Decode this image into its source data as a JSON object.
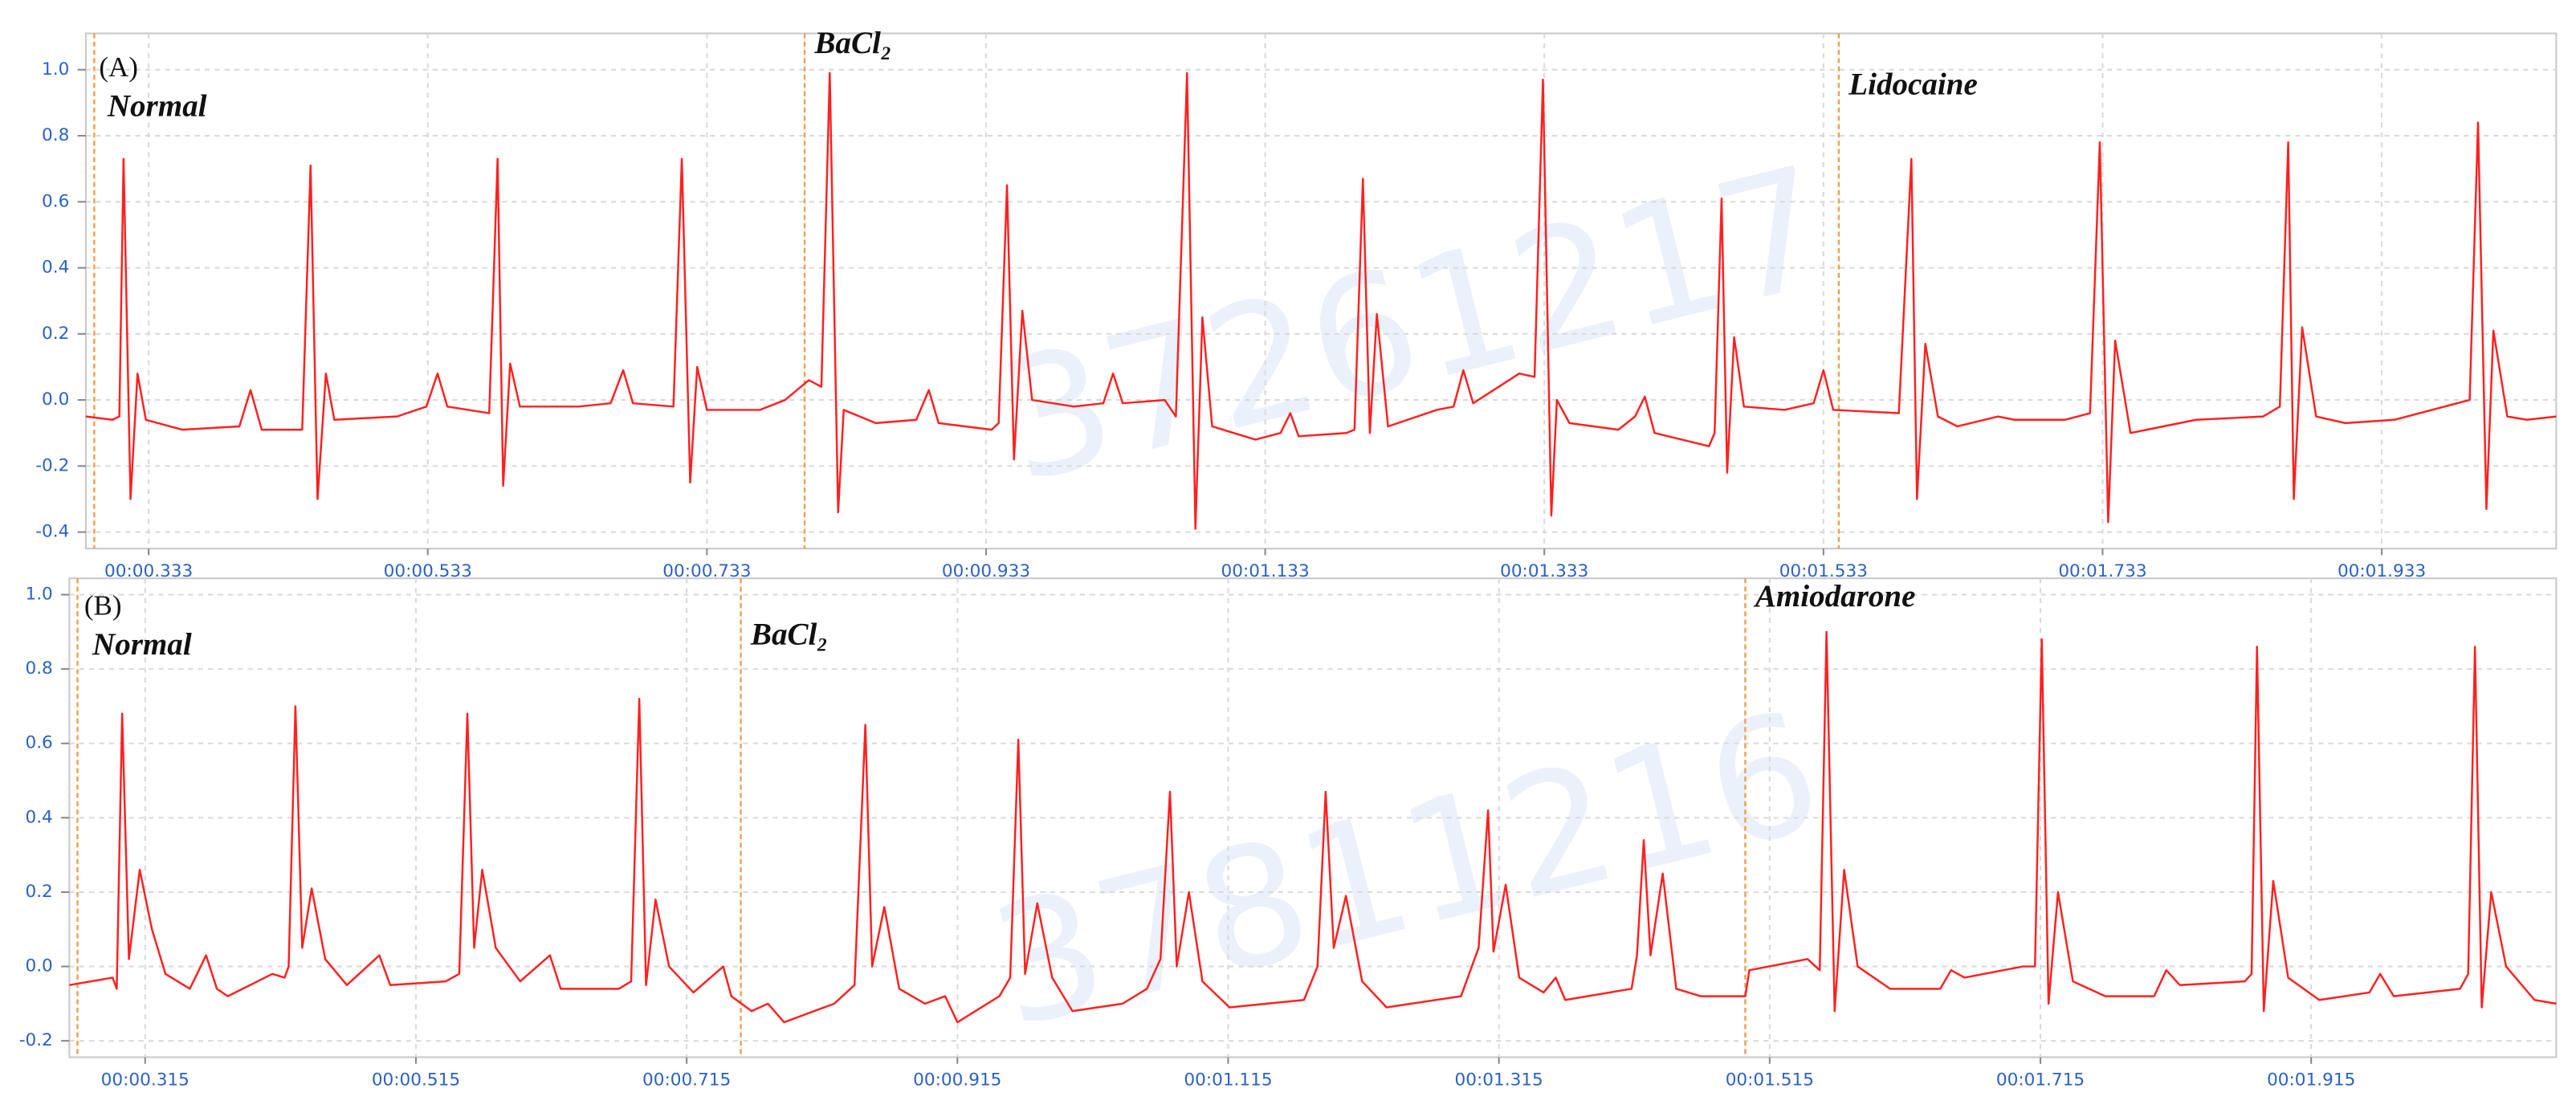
{
  "chart_data": [
    {
      "type": "line",
      "label": "(A)",
      "watermark": "37261217",
      "x": [
        0.288,
        0.307,
        0.312,
        0.315,
        0.32,
        0.325,
        0.331,
        0.357,
        0.398,
        0.406,
        0.414,
        0.443,
        0.449,
        0.454,
        0.46,
        0.466,
        0.511,
        0.532,
        0.54,
        0.547,
        0.577,
        0.583,
        0.587,
        0.592,
        0.599,
        0.641,
        0.664,
        0.673,
        0.68,
        0.709,
        0.715,
        0.721,
        0.726,
        0.733,
        0.771,
        0.789,
        0.806,
        0.815,
        0.821,
        0.827,
        0.831,
        0.854,
        0.883,
        0.892,
        0.899,
        0.937,
        0.942,
        0.948,
        0.953,
        0.959,
        0.966,
        0.996,
        1.017,
        1.024,
        1.031,
        1.061,
        1.069,
        1.077,
        1.083,
        1.088,
        1.095,
        1.126,
        1.144,
        1.151,
        1.157,
        1.191,
        1.197,
        1.203,
        1.208,
        1.213,
        1.221,
        1.256,
        1.268,
        1.275,
        1.282,
        1.315,
        1.326,
        1.332,
        1.338,
        1.342,
        1.351,
        1.386,
        1.398,
        1.405,
        1.412,
        1.451,
        1.455,
        1.46,
        1.464,
        1.469,
        1.476,
        1.505,
        1.526,
        1.533,
        1.54,
        1.587,
        1.596,
        1.6,
        1.606,
        1.615,
        1.629,
        1.658,
        1.67,
        1.706,
        1.724,
        1.731,
        1.737,
        1.742,
        1.753,
        1.8,
        1.848,
        1.86,
        1.866,
        1.87,
        1.876,
        1.886,
        1.907,
        1.942,
        1.978,
        1.996,
        2.002,
        2.008,
        2.013,
        2.023,
        2.037,
        2.058
      ],
      "series": [
        {
          "color": "#ff2020",
          "values": [
            -0.05,
            -0.06,
            -0.05,
            0.73,
            -0.3,
            0.08,
            -0.06,
            -0.09,
            -0.08,
            0.03,
            -0.09,
            -0.09,
            0.71,
            -0.3,
            0.08,
            -0.06,
            -0.05,
            -0.02,
            0.08,
            -0.02,
            -0.04,
            0.73,
            -0.26,
            0.11,
            -0.02,
            -0.02,
            -0.01,
            0.09,
            -0.01,
            -0.02,
            0.73,
            -0.25,
            0.1,
            -0.03,
            -0.03,
            0,
            0.06,
            0.04,
            0.99,
            -0.34,
            -0.03,
            -0.07,
            -0.06,
            0.03,
            -0.07,
            -0.09,
            -0.07,
            0.65,
            -0.18,
            0.27,
            0,
            -0.02,
            -0.01,
            0.08,
            -0.01,
            0,
            -0.05,
            0.99,
            -0.39,
            0.25,
            -0.08,
            -0.12,
            -0.1,
            -0.04,
            -0.11,
            -0.1,
            -0.09,
            0.67,
            -0.1,
            0.26,
            -0.08,
            -0.03,
            -0.02,
            0.09,
            -0.01,
            0.08,
            0.07,
            0.97,
            -0.35,
            0,
            -0.07,
            -0.09,
            -0.05,
            0.01,
            -0.1,
            -0.14,
            -0.1,
            0.61,
            -0.22,
            0.19,
            -0.02,
            -0.03,
            -0.01,
            0.09,
            -0.03,
            -0.04,
            0.73,
            -0.3,
            0.17,
            -0.05,
            -0.08,
            -0.05,
            -0.06,
            -0.06,
            -0.04,
            0.78,
            -0.37,
            0.18,
            -0.1,
            -0.06,
            -0.05,
            -0.02,
            0.78,
            -0.3,
            0.22,
            -0.05,
            -0.07,
            -0.06,
            -0.02,
            0,
            0.84,
            -0.33,
            0.21,
            -0.05,
            -0.06,
            -0.05
          ]
        }
      ],
      "events": [
        {
          "x": 0.294,
          "label": "Normal"
        },
        {
          "x": 0.803,
          "label": "BaCl₂"
        },
        {
          "x": 1.544,
          "label": "Lidocaine"
        }
      ],
      "xlim": [
        0.288,
        2.058
      ],
      "xticks": [
        {
          "value": 0.333,
          "label": "00:00.333"
        },
        {
          "value": 0.533,
          "label": "00:00.533"
        },
        {
          "value": 0.733,
          "label": "00:00.733"
        },
        {
          "value": 0.933,
          "label": "00:00.933"
        },
        {
          "value": 1.133,
          "label": "00:01.133"
        },
        {
          "value": 1.333,
          "label": "00:01.333"
        },
        {
          "value": 1.533,
          "label": "00:01.533"
        },
        {
          "value": 1.733,
          "label": "00:01.733"
        },
        {
          "value": 1.933,
          "label": "00:01.933"
        }
      ],
      "ylim": [
        -0.45,
        1.11
      ],
      "yticks": [
        -0.4,
        -0.2,
        {
          "value": 0,
          "label": "0.0"
        },
        0.2,
        0.4,
        0.6,
        0.8,
        {
          "value": 1,
          "label": "1.0"
        }
      ],
      "grid": true
    },
    {
      "type": "line",
      "label": "(B)",
      "watermark": "37811216",
      "x": [
        0.259,
        0.291,
        0.294,
        0.298,
        0.303,
        0.311,
        0.32,
        0.33,
        0.348,
        0.36,
        0.368,
        0.376,
        0.409,
        0.418,
        0.421,
        0.426,
        0.431,
        0.438,
        0.448,
        0.464,
        0.488,
        0.496,
        0.537,
        0.547,
        0.553,
        0.558,
        0.564,
        0.574,
        0.592,
        0.614,
        0.622,
        0.665,
        0.674,
        0.68,
        0.685,
        0.692,
        0.702,
        0.72,
        0.742,
        0.748,
        0.763,
        0.775,
        0.787,
        0.824,
        0.839,
        0.847,
        0.852,
        0.861,
        0.872,
        0.891,
        0.906,
        0.915,
        0.946,
        0.954,
        0.96,
        0.965,
        0.974,
        0.985,
        1.0,
        1.037,
        1.055,
        1.065,
        1.072,
        1.077,
        1.086,
        1.096,
        1.116,
        1.171,
        1.181,
        1.187,
        1.193,
        1.202,
        1.214,
        1.232,
        1.287,
        1.3,
        1.307,
        1.311,
        1.32,
        1.33,
        1.348,
        1.357,
        1.364,
        1.413,
        1.417,
        1.422,
        1.427,
        1.436,
        1.446,
        1.464,
        1.497,
        1.5,
        1.543,
        1.552,
        1.557,
        1.563,
        1.57,
        1.58,
        1.604,
        1.641,
        1.649,
        1.659,
        1.702,
        1.711,
        1.716,
        1.721,
        1.728,
        1.739,
        1.763,
        1.799,
        1.808,
        1.818,
        1.866,
        1.871,
        1.875,
        1.88,
        1.887,
        1.898,
        1.921,
        1.958,
        1.966,
        1.976,
        2.025,
        2.031,
        2.036,
        2.041,
        2.048,
        2.059,
        2.08,
        2.096
      ],
      "series": [
        {
          "color": "#ff2020",
          "values": [
            -0.05,
            -0.03,
            -0.06,
            0.68,
            0.02,
            0.26,
            0.1,
            -0.02,
            -0.06,
            0.03,
            -0.06,
            -0.08,
            -0.02,
            -0.03,
            0,
            0.7,
            0.05,
            0.21,
            0.02,
            -0.05,
            0.03,
            -0.05,
            -0.04,
            -0.02,
            0.68,
            0.05,
            0.26,
            0.05,
            -0.04,
            0.03,
            -0.06,
            -0.06,
            -0.04,
            0.72,
            -0.05,
            0.18,
            0,
            -0.07,
            0,
            -0.08,
            -0.12,
            -0.1,
            -0.15,
            -0.1,
            -0.05,
            0.65,
            0,
            0.16,
            -0.06,
            -0.1,
            -0.08,
            -0.15,
            -0.08,
            -0.03,
            0.61,
            -0.02,
            0.17,
            -0.03,
            -0.12,
            -0.1,
            -0.06,
            0.02,
            0.47,
            0,
            0.2,
            -0.04,
            -0.11,
            -0.09,
            0,
            0.47,
            0.05,
            0.19,
            -0.04,
            -0.11,
            -0.08,
            0.05,
            0.42,
            0.04,
            0.22,
            -0.03,
            -0.07,
            -0.03,
            -0.09,
            -0.06,
            0.03,
            0.34,
            0.03,
            0.25,
            -0.06,
            -0.08,
            -0.08,
            -0.01,
            0.02,
            -0.01,
            0.9,
            -0.12,
            0.26,
            0,
            -0.06,
            -0.06,
            -0.01,
            -0.03,
            0,
            0,
            0.88,
            -0.1,
            0.2,
            -0.04,
            -0.08,
            -0.08,
            -0.01,
            -0.05,
            -0.04,
            -0.02,
            0.86,
            -0.12,
            0.23,
            -0.03,
            -0.09,
            -0.07,
            -0.02,
            -0.08,
            -0.06,
            -0.02,
            0.86,
            -0.11,
            0.2,
            0,
            -0.09,
            -0.1
          ]
        }
      ],
      "events": [
        {
          "x": 0.265,
          "label": "Normal"
        },
        {
          "x": 0.755,
          "label": "BaCl₂"
        },
        {
          "x": 1.497,
          "label": "Amiodarone"
        }
      ],
      "xlim": [
        0.259,
        2.096
      ],
      "xticks": [
        {
          "value": 0.315,
          "label": "00:00.315"
        },
        {
          "value": 0.515,
          "label": "00:00.515"
        },
        {
          "value": 0.715,
          "label": "00:00.715"
        },
        {
          "value": 0.915,
          "label": "00:00.915"
        },
        {
          "value": 1.115,
          "label": "00:01.115"
        },
        {
          "value": 1.315,
          "label": "00:01.315"
        },
        {
          "value": 1.515,
          "label": "00:01.515"
        },
        {
          "value": 1.715,
          "label": "00:01.715"
        },
        {
          "value": 1.915,
          "label": "00:01.915"
        }
      ],
      "ylim": [
        -0.244,
        1.044
      ],
      "yticks": [
        -0.2,
        {
          "value": 0,
          "label": "0.0"
        },
        0.2,
        0.4,
        0.6,
        0.8,
        {
          "value": 1,
          "label": "1.0"
        }
      ],
      "grid": true
    }
  ]
}
